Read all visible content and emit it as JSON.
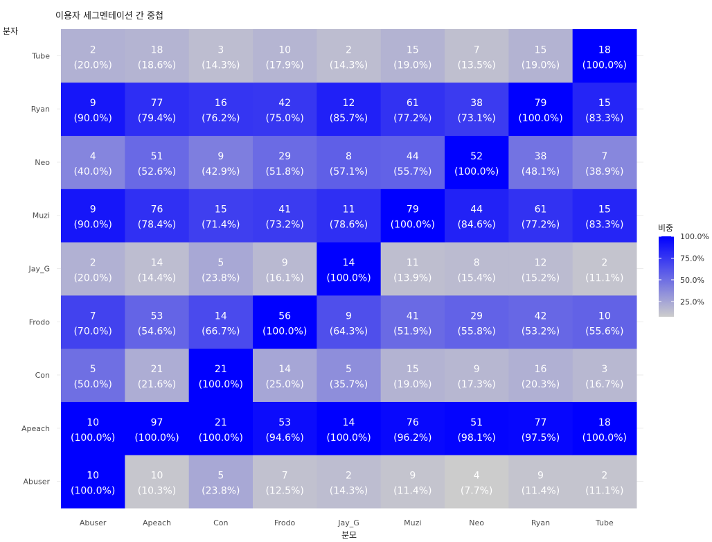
{
  "chart_data": {
    "type": "heatmap",
    "title": "이용자 세그멘테이션 간 중첩",
    "xlabel": "분모",
    "ylabel": "분자",
    "x_categories": [
      "Abuser",
      "Apeach",
      "Con",
      "Frodo",
      "Jay_G",
      "Muzi",
      "Neo",
      "Ryan",
      "Tube"
    ],
    "y_categories": [
      "Abuser",
      "Apeach",
      "Con",
      "Frodo",
      "Jay_G",
      "Muzi",
      "Neo",
      "Ryan",
      "Tube"
    ],
    "counts": [
      [
        10,
        10,
        5,
        7,
        2,
        9,
        4,
        9,
        2
      ],
      [
        10,
        97,
        21,
        53,
        14,
        76,
        51,
        77,
        18
      ],
      [
        5,
        21,
        21,
        14,
        5,
        15,
        9,
        16,
        3
      ],
      [
        7,
        53,
        14,
        56,
        9,
        41,
        29,
        42,
        10
      ],
      [
        2,
        14,
        5,
        9,
        14,
        11,
        8,
        12,
        2
      ],
      [
        9,
        76,
        15,
        41,
        11,
        79,
        44,
        61,
        15
      ],
      [
        4,
        51,
        9,
        29,
        8,
        44,
        52,
        38,
        7
      ],
      [
        9,
        77,
        16,
        42,
        12,
        61,
        38,
        79,
        15
      ],
      [
        2,
        18,
        3,
        10,
        2,
        15,
        7,
        15,
        18
      ]
    ],
    "percent_labels": [
      [
        "(100.0%)",
        "(10.3%)",
        "(23.8%)",
        "(12.5%)",
        "(14.3%)",
        "(11.4%)",
        "(7.7%)",
        "(11.4%)",
        "(11.1%)"
      ],
      [
        "(100.0%)",
        "(100.0%)",
        "(100.0%)",
        "(94.6%)",
        "(100.0%)",
        "(96.2%)",
        "(98.1%)",
        "(97.5%)",
        "(100.0%)"
      ],
      [
        "(50.0%)",
        "(21.6%)",
        "(100.0%)",
        "(25.0%)",
        "(35.7%)",
        "(19.0%)",
        "(17.3%)",
        "(20.3%)",
        "(16.7%)"
      ],
      [
        "(70.0%)",
        "(54.6%)",
        "(66.7%)",
        "(100.0%)",
        "(64.3%)",
        "(51.9%)",
        "(55.8%)",
        "(53.2%)",
        "(55.6%)"
      ],
      [
        "(20.0%)",
        "(14.4%)",
        "(23.8%)",
        "(16.1%)",
        "(100.0%)",
        "(13.9%)",
        "(15.4%)",
        "(15.2%)",
        "(11.1%)"
      ],
      [
        "(90.0%)",
        "(78.4%)",
        "(71.4%)",
        "(73.2%)",
        "(78.6%)",
        "(100.0%)",
        "(84.6%)",
        "(77.2%)",
        "(83.3%)"
      ],
      [
        "(40.0%)",
        "(52.6%)",
        "(42.9%)",
        "(51.8%)",
        "(57.1%)",
        "(55.7%)",
        "(100.0%)",
        "(48.1%)",
        "(38.9%)"
      ],
      [
        "(90.0%)",
        "(79.4%)",
        "(76.2%)",
        "(75.0%)",
        "(85.7%)",
        "(77.2%)",
        "(73.1%)",
        "(100.0%)",
        "(83.3%)"
      ],
      [
        "(20.0%)",
        "(18.6%)",
        "(14.3%)",
        "(17.9%)",
        "(14.3%)",
        "(19.0%)",
        "(13.5%)",
        "(19.0%)",
        "(100.0%)"
      ]
    ],
    "legend": {
      "title": "비중",
      "labels": [
        "100.0%",
        "75.0%",
        "50.0%",
        "25.0%"
      ],
      "breaks": [
        100,
        75,
        50,
        25
      ],
      "range": [
        7.7,
        100
      ],
      "color_low": "#cccccc",
      "color_high": "#0000ff"
    },
    "grid": true
  }
}
